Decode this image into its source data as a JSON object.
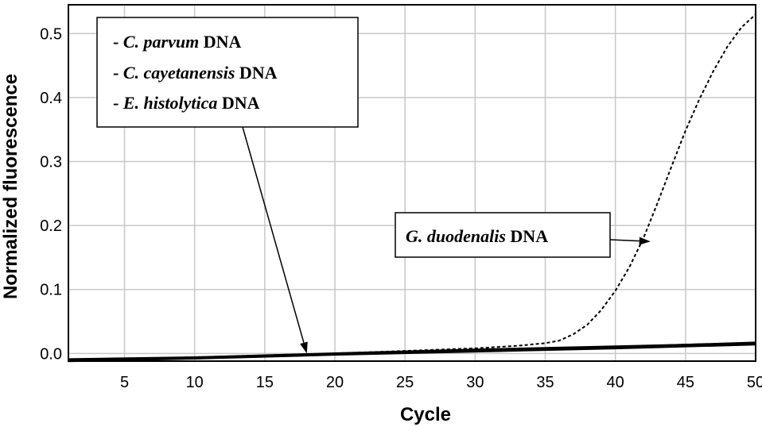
{
  "chart_data": {
    "type": "line",
    "xlabel": "Cycle",
    "ylabel": "Normalized fluorescence",
    "xlim": [
      1,
      50
    ],
    "ylim": [
      -0.012,
      0.545
    ],
    "xticks": [
      5,
      10,
      15,
      20,
      25,
      30,
      35,
      40,
      45,
      50
    ],
    "yticks": [
      0.0,
      0.1,
      0.2,
      0.3,
      0.4,
      0.5
    ],
    "ytick_labels": [
      "0.0",
      "0.1",
      "0.2",
      "0.3",
      "0.4",
      "0.5"
    ],
    "grid": true,
    "series": [
      {
        "name": "G. duodenalis DNA",
        "style": "dashed",
        "x": [
          1,
          5,
          10,
          15,
          20,
          25,
          30,
          33,
          35,
          36,
          37,
          38,
          39,
          40,
          41,
          42,
          43,
          44,
          45,
          46,
          47,
          48,
          49,
          50
        ],
        "y": [
          -0.01,
          -0.008,
          -0.006,
          -0.003,
          0.0,
          0.004,
          0.008,
          0.012,
          0.016,
          0.02,
          0.03,
          0.045,
          0.068,
          0.098,
          0.135,
          0.18,
          0.235,
          0.292,
          0.348,
          0.398,
          0.442,
          0.48,
          0.51,
          0.53
        ]
      },
      {
        "name": "C. parvum DNA",
        "style": "solid",
        "x": [
          1,
          10,
          20,
          30,
          40,
          50
        ],
        "y": [
          -0.011,
          -0.007,
          -0.001,
          0.005,
          0.01,
          0.017
        ]
      },
      {
        "name": "C. cayetanensis DNA",
        "style": "solid",
        "x": [
          1,
          10,
          20,
          30,
          40,
          50
        ],
        "y": [
          -0.009,
          -0.006,
          0.0,
          0.006,
          0.011,
          0.016
        ]
      },
      {
        "name": "E. histolytica DNA",
        "style": "solid",
        "x": [
          1,
          10,
          20,
          30,
          40,
          50
        ],
        "y": [
          -0.012,
          -0.008,
          -0.002,
          0.003,
          0.008,
          0.014
        ]
      }
    ],
    "legend_box": {
      "lines": [
        {
          "dash": "- ",
          "italic": "C. parvum",
          "plain": " DNA"
        },
        {
          "dash": "- ",
          "italic": "C. cayetanensis",
          "plain": " DNA"
        },
        {
          "dash": "- ",
          "italic": "E. histolytica",
          "plain": " DNA"
        }
      ],
      "arrow_target": {
        "x": 18,
        "y": 0.0
      }
    },
    "annotation": {
      "italic": "G. duodenalis",
      "plain": " DNA",
      "arrow_target": {
        "x": 42.5,
        "y": 0.175
      }
    },
    "colors": {
      "line": "#000000",
      "grid": "#c8c8c8",
      "frame": "#000000"
    }
  }
}
